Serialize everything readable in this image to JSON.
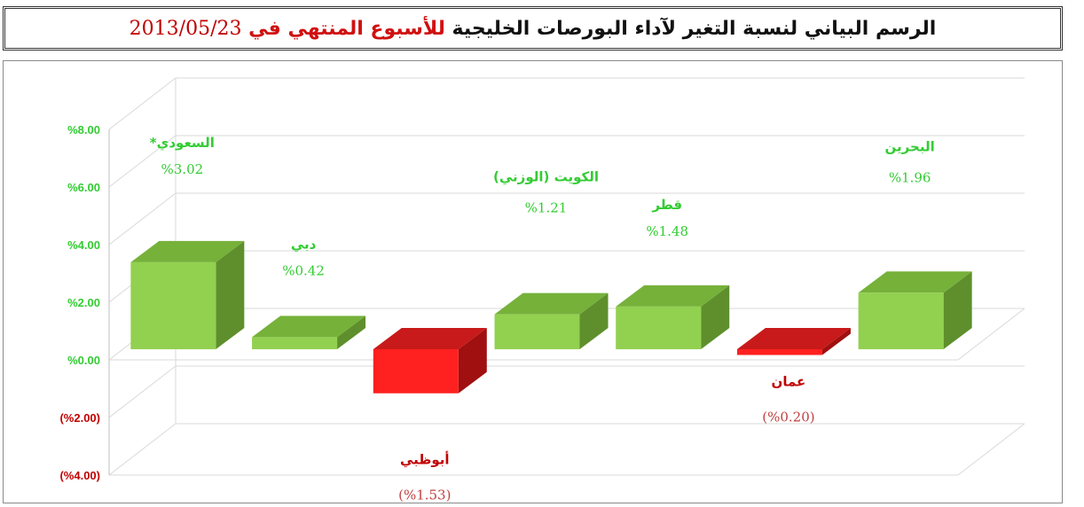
{
  "title": {
    "part1": "الرسم البياني لنسبة التغير لآداء البورصات الخليجية",
    "part2": "للأسبوع المنتهي في",
    "date": "2013/05/23"
  },
  "colors": {
    "positive_front": "#92d050",
    "positive_top": "#76b13a",
    "positive_side": "#5e8f2c",
    "negative_front": "#ff2020",
    "negative_top": "#c81a1a",
    "negative_side": "#a01010",
    "positive_text": "#33cc33",
    "negative_text": "#c00000"
  },
  "chart_data": {
    "type": "bar",
    "style": "3d-column",
    "categories": [
      "السعودي*",
      "دبي",
      "أبوظبي",
      "الكويت (الوزني)",
      "قطر",
      "عمان",
      "البحرين"
    ],
    "values": [
      3.02,
      0.42,
      -1.53,
      1.21,
      1.48,
      -0.2,
      1.96
    ],
    "value_labels": [
      "%3.02",
      "%0.42",
      "(%1.53)",
      "%1.21",
      "%1.48",
      "(%0.20)",
      "%1.96"
    ],
    "y_ticks": [
      8,
      6,
      4,
      2,
      0,
      -2,
      -4
    ],
    "y_tick_labels": [
      "%8.00",
      "%6.00",
      "%4.00",
      "%2.00",
      "%0.00",
      "(%2.00)",
      "(%4.00)"
    ],
    "ylim": [
      -4,
      8
    ],
    "grid": true,
    "legend": "none"
  }
}
